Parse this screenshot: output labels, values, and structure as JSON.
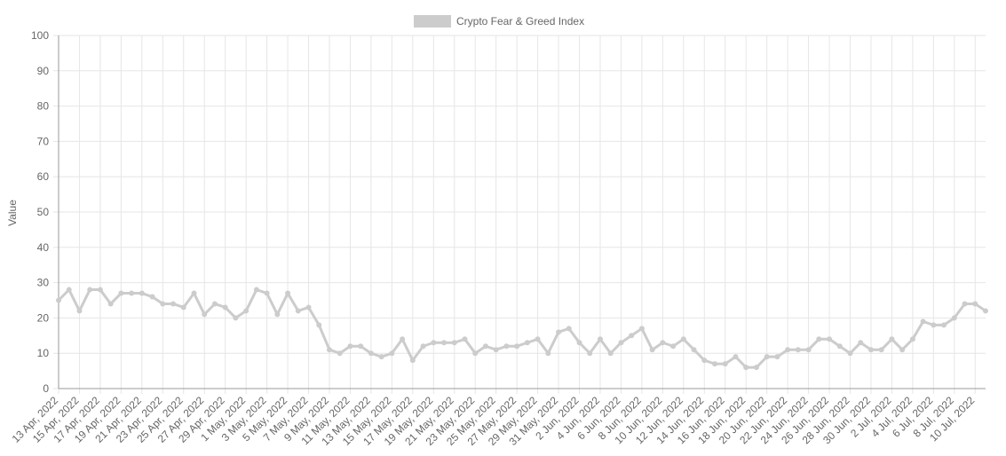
{
  "chart_data": {
    "type": "line",
    "legend_position": "top",
    "y_label": "Value",
    "categories": [
      "13 Apr, 2022",
      null,
      "15 Apr, 2022",
      null,
      "17 Apr, 2022",
      null,
      "19 Apr, 2022",
      null,
      "21 Apr, 2022",
      null,
      "23 Apr, 2022",
      null,
      "25 Apr, 2022",
      null,
      "27 Apr, 2022",
      null,
      "29 Apr, 2022",
      null,
      "1 May, 2022",
      null,
      "3 May, 2022",
      null,
      "5 May, 2022",
      null,
      "7 May, 2022",
      null,
      "9 May, 2022",
      null,
      "11 May, 2022",
      null,
      "13 May, 2022",
      null,
      "15 May, 2022",
      null,
      "17 May, 2022",
      null,
      "19 May, 2022",
      null,
      "21 May, 2022",
      null,
      "23 May, 2022",
      null,
      "25 May, 2022",
      null,
      "27 May, 2022",
      null,
      "29 May, 2022",
      null,
      "31 May, 2022",
      null,
      "2 Jun, 2022",
      null,
      "4 Jun, 2022",
      null,
      "6 Jun, 2022",
      null,
      "8 Jun, 2022",
      null,
      "10 Jun, 2022",
      null,
      "12 Jun, 2022",
      null,
      "14 Jun, 2022",
      null,
      "16 Jun, 2022",
      null,
      "18 Jun, 2022",
      null,
      "20 Jun, 2022",
      null,
      "22 Jun, 2022",
      null,
      "24 Jun, 2022",
      null,
      "26 Jun, 2022",
      null,
      "28 Jun, 2022",
      null,
      "30 Jun, 2022",
      null,
      "2 Jul, 2022",
      null,
      "4 Jul, 2022",
      null,
      "6 Jul, 2022",
      null,
      "8 Jul, 2022",
      null,
      "10 Jul, 2022",
      null
    ],
    "series": [
      {
        "name": "Crypto Fear & Greed Index",
        "color": "#cccccc",
        "values": [
          25,
          28,
          22,
          28,
          28,
          24,
          27,
          27,
          27,
          26,
          24,
          24,
          23,
          27,
          21,
          24,
          23,
          20,
          22,
          28,
          27,
          21,
          27,
          22,
          23,
          18,
          11,
          10,
          12,
          12,
          10,
          9,
          10,
          14,
          8,
          12,
          13,
          13,
          13,
          14,
          10,
          12,
          11,
          12,
          12,
          13,
          14,
          10,
          16,
          17,
          13,
          10,
          14,
          10,
          13,
          15,
          17,
          11,
          13,
          12,
          14,
          11,
          8,
          7,
          7,
          9,
          6,
          6,
          9,
          9,
          11,
          11,
          11,
          14,
          14,
          12,
          10,
          13,
          11,
          11,
          14,
          11,
          14,
          19,
          18,
          18,
          20,
          24,
          24,
          22
        ]
      }
    ],
    "ylim": [
      0,
      100
    ],
    "yticks": [
      0,
      10,
      20,
      30,
      40,
      50,
      60,
      70,
      80,
      90,
      100
    ],
    "grid": true
  }
}
